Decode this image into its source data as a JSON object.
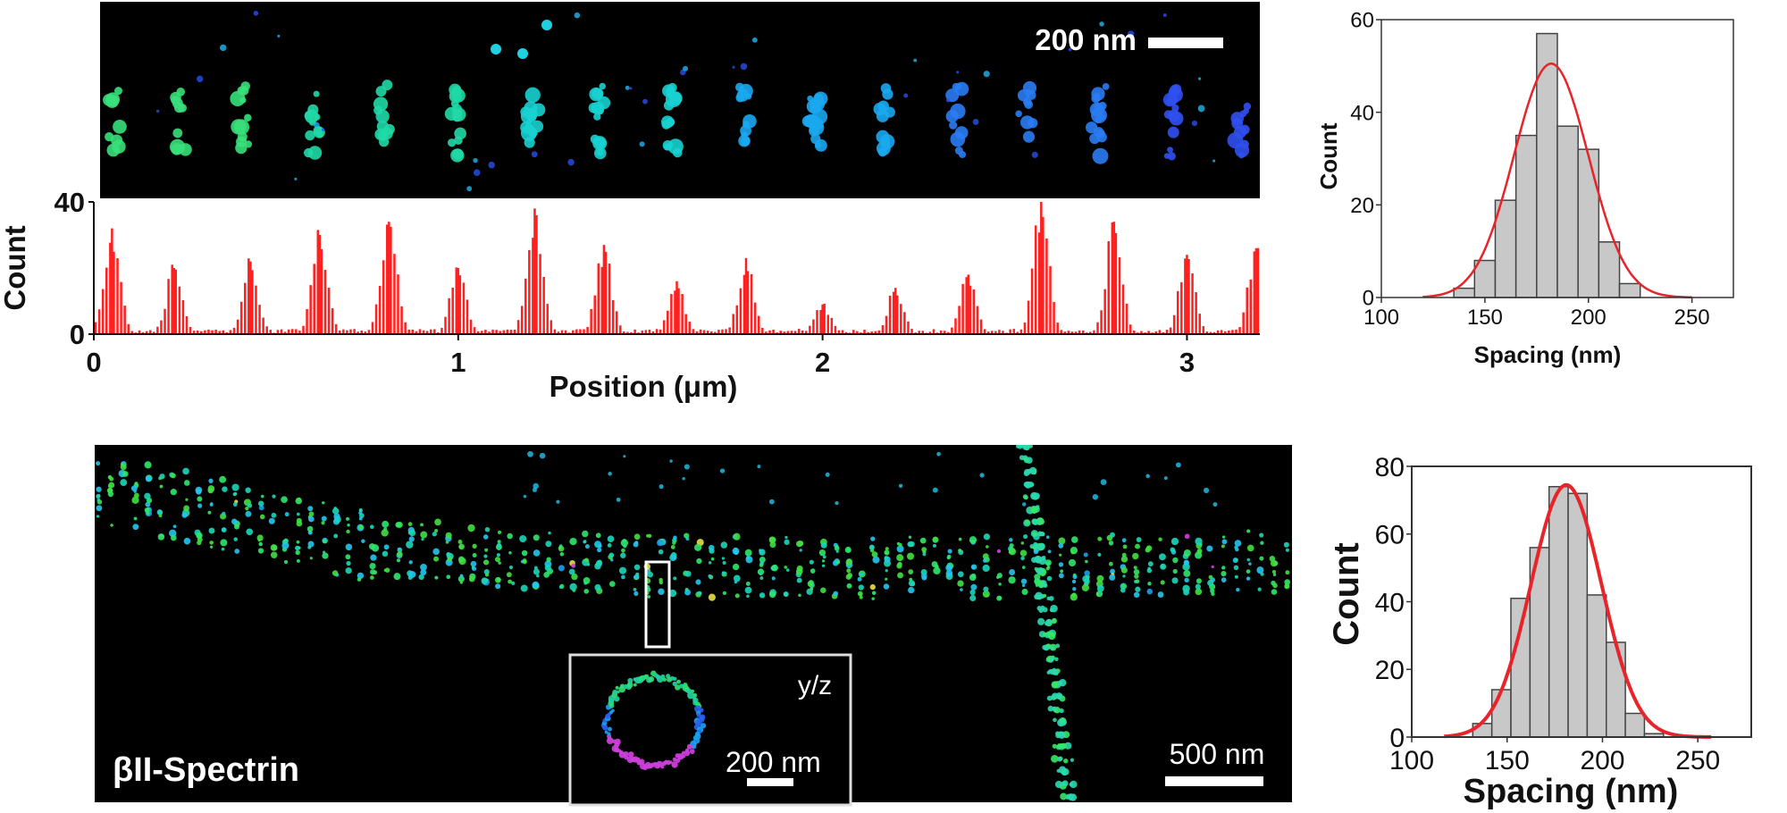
{
  "panels": {
    "top_image": {
      "scalebar_label": "200 nm"
    },
    "bottom_image": {
      "title": "βII-Spectrin",
      "scalebar_label": "500 nm",
      "inset_label": "y/z",
      "inset_scalebar_label": "200 nm"
    }
  },
  "colors": {
    "bars": "#ff2020",
    "fit_line": "#e8242a",
    "hist_fill": "#c8c8c8",
    "hist_edge": "#444444"
  },
  "chart_data": [
    {
      "id": "profile",
      "type": "bar",
      "title": "",
      "xlabel": "Position (μm)",
      "ylabel": "Count",
      "xlim": [
        0,
        3.2
      ],
      "ylim": [
        0,
        40
      ],
      "xticks": [
        0,
        1,
        2,
        3
      ],
      "yticks": [
        0,
        40
      ],
      "peaks": [
        {
          "x": 0.05,
          "y": 32
        },
        {
          "x": 0.22,
          "y": 20
        },
        {
          "x": 0.43,
          "y": 22
        },
        {
          "x": 0.62,
          "y": 30
        },
        {
          "x": 0.81,
          "y": 34
        },
        {
          "x": 1.0,
          "y": 20
        },
        {
          "x": 1.21,
          "y": 38
        },
        {
          "x": 1.4,
          "y": 27
        },
        {
          "x": 1.6,
          "y": 16
        },
        {
          "x": 1.79,
          "y": 23
        },
        {
          "x": 2.0,
          "y": 9
        },
        {
          "x": 2.2,
          "y": 14
        },
        {
          "x": 2.4,
          "y": 18
        },
        {
          "x": 2.6,
          "y": 40
        },
        {
          "x": 2.8,
          "y": 34
        },
        {
          "x": 3.0,
          "y": 24
        },
        {
          "x": 3.19,
          "y": 26
        }
      ]
    },
    {
      "id": "hist_top",
      "type": "bar",
      "title": "",
      "xlabel": "Spacing (nm)",
      "ylabel": "Count",
      "xlim": [
        100,
        270
      ],
      "ylim": [
        0,
        60
      ],
      "xticks": [
        100,
        150,
        200,
        250
      ],
      "yticks": [
        0,
        20,
        40,
        60
      ],
      "bin_edges": [
        135,
        145,
        155,
        165,
        175,
        185,
        195,
        205,
        215,
        225
      ],
      "values": [
        2,
        8,
        21,
        35,
        57,
        37,
        32,
        12,
        3
      ],
      "fit": {
        "type": "gaussian",
        "mean": 182,
        "sd": 18,
        "amplitude": 50.5
      }
    },
    {
      "id": "hist_bottom",
      "type": "bar",
      "title": "",
      "xlabel": "Spacing (nm)",
      "ylabel": "Count",
      "xlim": [
        100,
        278
      ],
      "ylim": [
        0,
        80
      ],
      "xticks": [
        100,
        150,
        200,
        250
      ],
      "yticks": [
        0,
        20,
        40,
        60,
        80
      ],
      "bin_edges": [
        132,
        142,
        152,
        162,
        172,
        182,
        192,
        202,
        212,
        222,
        232
      ],
      "values": [
        4,
        14,
        41,
        56,
        74,
        72,
        42,
        28,
        7,
        1
      ],
      "fit": {
        "type": "gaussian",
        "mean": 181,
        "sd": 18.5,
        "amplitude": 74.5
      }
    }
  ]
}
